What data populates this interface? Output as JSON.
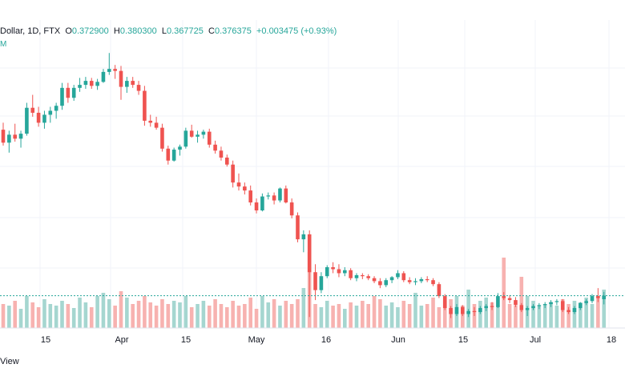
{
  "header": {
    "symbol": "Dollar, 1D, FTX",
    "o_key": "O",
    "o_val": "0.372900",
    "h_key": "H",
    "h_val": "0.380300",
    "l_key": "L",
    "l_val": "0.367725",
    "c_key": "C",
    "c_val": "0.376375",
    "change": "+0.003475 (+0.93%)",
    "sub_label": "M"
  },
  "footer": {
    "label": "View"
  },
  "colors": {
    "up": "#26a69a",
    "down": "#ef5350",
    "vol_up": "#a5d6d0",
    "vol_down": "#f7b2b0",
    "grid": "#f0f3fa",
    "price_line": "#26a69a"
  },
  "chart_data": {
    "type": "candlestick",
    "x_tick_labels": [
      "15",
      "Apr",
      "15",
      "May",
      "16",
      "Jun",
      "15",
      "Jul",
      "18"
    ],
    "candles": [
      [
        0.543,
        0.55,
        0.527,
        0.53
      ],
      [
        0.53,
        0.542,
        0.52,
        0.538
      ],
      [
        0.538,
        0.549,
        0.531,
        0.534
      ],
      [
        0.534,
        0.542,
        0.525,
        0.539
      ],
      [
        0.539,
        0.57,
        0.537,
        0.565
      ],
      [
        0.565,
        0.578,
        0.556,
        0.56
      ],
      [
        0.56,
        0.566,
        0.546,
        0.55
      ],
      [
        0.55,
        0.562,
        0.544,
        0.558
      ],
      [
        0.558,
        0.566,
        0.55,
        0.562
      ],
      [
        0.562,
        0.57,
        0.554,
        0.567
      ],
      [
        0.567,
        0.59,
        0.563,
        0.585
      ],
      [
        0.585,
        0.59,
        0.57,
        0.575
      ],
      [
        0.575,
        0.588,
        0.572,
        0.585
      ],
      [
        0.585,
        0.595,
        0.581,
        0.588
      ],
      [
        0.588,
        0.596,
        0.584,
        0.592
      ],
      [
        0.592,
        0.595,
        0.584,
        0.587
      ],
      [
        0.587,
        0.594,
        0.583,
        0.591
      ],
      [
        0.591,
        0.604,
        0.59,
        0.601
      ],
      [
        0.601,
        0.62,
        0.598,
        0.604
      ],
      [
        0.604,
        0.608,
        0.594,
        0.602
      ],
      [
        0.602,
        0.607,
        0.573,
        0.586
      ],
      [
        0.586,
        0.596,
        0.58,
        0.592
      ],
      [
        0.592,
        0.596,
        0.585,
        0.588
      ],
      [
        0.588,
        0.592,
        0.578,
        0.582
      ],
      [
        0.582,
        0.587,
        0.547,
        0.552
      ],
      [
        0.552,
        0.558,
        0.546,
        0.55
      ],
      [
        0.55,
        0.556,
        0.543,
        0.545
      ],
      [
        0.545,
        0.549,
        0.521,
        0.524
      ],
      [
        0.524,
        0.527,
        0.508,
        0.512
      ],
      [
        0.512,
        0.525,
        0.511,
        0.523
      ],
      [
        0.523,
        0.528,
        0.517,
        0.526
      ],
      [
        0.526,
        0.545,
        0.524,
        0.542
      ],
      [
        0.542,
        0.548,
        0.535,
        0.536
      ],
      [
        0.536,
        0.542,
        0.53,
        0.538
      ],
      [
        0.538,
        0.543,
        0.534,
        0.541
      ],
      [
        0.541,
        0.544,
        0.525,
        0.528
      ],
      [
        0.528,
        0.532,
        0.519,
        0.522
      ],
      [
        0.522,
        0.526,
        0.512,
        0.515
      ],
      [
        0.515,
        0.518,
        0.506,
        0.508
      ],
      [
        0.508,
        0.512,
        0.485,
        0.49
      ],
      [
        0.49,
        0.499,
        0.482,
        0.486
      ],
      [
        0.486,
        0.49,
        0.478,
        0.482
      ],
      [
        0.482,
        0.487,
        0.467,
        0.47
      ],
      [
        0.47,
        0.474,
        0.459,
        0.462
      ],
      [
        0.462,
        0.479,
        0.461,
        0.476
      ],
      [
        0.476,
        0.48,
        0.473,
        0.477
      ],
      [
        0.477,
        0.48,
        0.468,
        0.472
      ],
      [
        0.472,
        0.485,
        0.47,
        0.484
      ],
      [
        0.484,
        0.487,
        0.469,
        0.47
      ],
      [
        0.47,
        0.474,
        0.454,
        0.457
      ],
      [
        0.457,
        0.46,
        0.43,
        0.433
      ],
      [
        0.433,
        0.442,
        0.42,
        0.438
      ],
      [
        0.438,
        0.442,
        0.355,
        0.4
      ],
      [
        0.4,
        0.408,
        0.372,
        0.382
      ],
      [
        0.382,
        0.4,
        0.379,
        0.396
      ],
      [
        0.396,
        0.407,
        0.394,
        0.405
      ],
      [
        0.405,
        0.41,
        0.399,
        0.403
      ],
      [
        0.403,
        0.408,
        0.395,
        0.399
      ],
      [
        0.399,
        0.405,
        0.396,
        0.402
      ],
      [
        0.402,
        0.404,
        0.392,
        0.394
      ],
      [
        0.394,
        0.399,
        0.391,
        0.397
      ],
      [
        0.397,
        0.399,
        0.393,
        0.396
      ],
      [
        0.396,
        0.398,
        0.392,
        0.394
      ],
      [
        0.394,
        0.396,
        0.389,
        0.391
      ],
      [
        0.391,
        0.394,
        0.384,
        0.387
      ],
      [
        0.387,
        0.394,
        0.385,
        0.392
      ],
      [
        0.392,
        0.396,
        0.389,
        0.395
      ],
      [
        0.395,
        0.402,
        0.393,
        0.399
      ],
      [
        0.399,
        0.401,
        0.39,
        0.392
      ],
      [
        0.392,
        0.395,
        0.388,
        0.39
      ],
      [
        0.39,
        0.394,
        0.387,
        0.391
      ],
      [
        0.391,
        0.395,
        0.389,
        0.393
      ],
      [
        0.393,
        0.396,
        0.39,
        0.392
      ],
      [
        0.392,
        0.394,
        0.386,
        0.388
      ],
      [
        0.388,
        0.39,
        0.374,
        0.376
      ],
      [
        0.376,
        0.378,
        0.362,
        0.364
      ],
      [
        0.364,
        0.366,
        0.354,
        0.358
      ],
      [
        0.358,
        0.368,
        0.356,
        0.365
      ],
      [
        0.365,
        0.367,
        0.356,
        0.358
      ],
      [
        0.358,
        0.363,
        0.355,
        0.361
      ],
      [
        0.361,
        0.365,
        0.356,
        0.36
      ],
      [
        0.36,
        0.366,
        0.358,
        0.364
      ],
      [
        0.364,
        0.368,
        0.361,
        0.366
      ],
      [
        0.366,
        0.37,
        0.362,
        0.365
      ],
      [
        0.365,
        0.379,
        0.364,
        0.376
      ],
      [
        0.376,
        0.38,
        0.372,
        0.374
      ],
      [
        0.374,
        0.377,
        0.369,
        0.372
      ],
      [
        0.372,
        0.375,
        0.365,
        0.367
      ],
      [
        0.367,
        0.369,
        0.36,
        0.362
      ],
      [
        0.362,
        0.366,
        0.356,
        0.364
      ],
      [
        0.364,
        0.368,
        0.362,
        0.366
      ],
      [
        0.366,
        0.369,
        0.363,
        0.367
      ],
      [
        0.367,
        0.37,
        0.364,
        0.368
      ],
      [
        0.368,
        0.372,
        0.365,
        0.37
      ],
      [
        0.37,
        0.373,
        0.367,
        0.371
      ],
      [
        0.371,
        0.373,
        0.36,
        0.362
      ],
      [
        0.362,
        0.365,
        0.358,
        0.36
      ],
      [
        0.36,
        0.366,
        0.358,
        0.364
      ],
      [
        0.364,
        0.37,
        0.362,
        0.369
      ],
      [
        0.369,
        0.373,
        0.367,
        0.371
      ],
      [
        0.371,
        0.378,
        0.369,
        0.376
      ],
      [
        0.376,
        0.384,
        0.37,
        0.374
      ],
      [
        0.3729,
        0.3803,
        0.3677,
        0.3764
      ]
    ],
    "volume": [
      30,
      28,
      34,
      24,
      40,
      32,
      26,
      36,
      30,
      28,
      34,
      30,
      25,
      38,
      32,
      26,
      40,
      44,
      36,
      28,
      46,
      38,
      30,
      34,
      40,
      32,
      28,
      36,
      30,
      34,
      32,
      40,
      26,
      30,
      34,
      28,
      36,
      30,
      26,
      34,
      28,
      30,
      38,
      24,
      40,
      32,
      36,
      28,
      34,
      30,
      36,
      50,
      95,
      30,
      26,
      34,
      28,
      30,
      24,
      32,
      28,
      34,
      30,
      40,
      36,
      28,
      32,
      26,
      34,
      30,
      44,
      28,
      30,
      38,
      26,
      34,
      36,
      40,
      28,
      48,
      30,
      34,
      38,
      32,
      28,
      88,
      30,
      28,
      64,
      40,
      34,
      28,
      30,
      32,
      28,
      36,
      30,
      34,
      32,
      38,
      30,
      40,
      48
    ],
    "last_price": 0.3764,
    "y_range": [
      0.348,
      0.625
    ],
    "grid": true
  }
}
